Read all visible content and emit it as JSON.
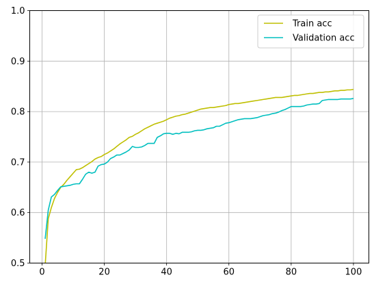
{
  "chart_data": {
    "type": "line",
    "title": "",
    "xlabel": "",
    "ylabel": "",
    "xlim": [
      -3.95,
      104.95
    ],
    "ylim": [
      0.5,
      1.0
    ],
    "xticks": [
      0,
      20,
      40,
      60,
      80,
      100
    ],
    "yticks": [
      0.5,
      0.6,
      0.7,
      0.8,
      0.9,
      1.0
    ],
    "xtick_labels": [
      "0",
      "20",
      "40",
      "60",
      "80",
      "100"
    ],
    "ytick_labels": [
      "0.5",
      "0.6",
      "0.7",
      "0.8",
      "0.9",
      "1.0"
    ],
    "grid": true,
    "legend_position": "top-right",
    "series": [
      {
        "name": "Train acc",
        "color": "#bfbf00",
        "x": [
          1,
          2,
          3,
          4,
          5,
          6,
          7,
          8,
          9,
          10,
          11,
          12,
          13,
          14,
          15,
          16,
          17,
          18,
          19,
          20,
          21,
          22,
          23,
          24,
          25,
          26,
          27,
          28,
          29,
          30,
          31,
          32,
          33,
          34,
          35,
          36,
          37,
          38,
          39,
          40,
          41,
          42,
          43,
          44,
          45,
          46,
          47,
          48,
          49,
          50,
          51,
          52,
          53,
          54,
          55,
          56,
          57,
          58,
          59,
          60,
          61,
          62,
          63,
          64,
          65,
          66,
          67,
          68,
          69,
          70,
          71,
          72,
          73,
          74,
          75,
          76,
          77,
          78,
          79,
          80,
          81,
          82,
          83,
          84,
          85,
          86,
          87,
          88,
          89,
          90,
          91,
          92,
          93,
          94,
          95,
          96,
          97,
          98,
          99,
          100
        ],
        "y": [
          0.495,
          0.588,
          0.61,
          0.628,
          0.64,
          0.65,
          0.656,
          0.664,
          0.671,
          0.678,
          0.685,
          0.686,
          0.689,
          0.693,
          0.697,
          0.701,
          0.706,
          0.709,
          0.711,
          0.715,
          0.718,
          0.722,
          0.726,
          0.731,
          0.736,
          0.74,
          0.744,
          0.749,
          0.751,
          0.755,
          0.758,
          0.762,
          0.766,
          0.769,
          0.772,
          0.775,
          0.777,
          0.779,
          0.781,
          0.784,
          0.787,
          0.789,
          0.791,
          0.792,
          0.794,
          0.795,
          0.797,
          0.799,
          0.801,
          0.803,
          0.805,
          0.806,
          0.807,
          0.808,
          0.808,
          0.809,
          0.81,
          0.811,
          0.812,
          0.814,
          0.815,
          0.816,
          0.816,
          0.817,
          0.818,
          0.819,
          0.82,
          0.821,
          0.822,
          0.823,
          0.824,
          0.825,
          0.826,
          0.827,
          0.828,
          0.828,
          0.828,
          0.829,
          0.83,
          0.831,
          0.832,
          0.832,
          0.833,
          0.834,
          0.835,
          0.836,
          0.836,
          0.837,
          0.838,
          0.838,
          0.839,
          0.839,
          0.84,
          0.841,
          0.841,
          0.842,
          0.842,
          0.843,
          0.843,
          0.844
        ]
      },
      {
        "name": "Validation acc",
        "color": "#00bfbf",
        "x": [
          1,
          2,
          3,
          4,
          5,
          6,
          7,
          8,
          9,
          10,
          11,
          12,
          13,
          14,
          15,
          16,
          17,
          18,
          19,
          20,
          21,
          22,
          23,
          24,
          25,
          26,
          27,
          28,
          29,
          30,
          31,
          32,
          33,
          34,
          35,
          36,
          37,
          38,
          39,
          40,
          41,
          42,
          43,
          44,
          45,
          46,
          47,
          48,
          49,
          50,
          51,
          52,
          53,
          54,
          55,
          56,
          57,
          58,
          59,
          60,
          61,
          62,
          63,
          64,
          65,
          66,
          67,
          68,
          69,
          70,
          71,
          72,
          73,
          74,
          75,
          76,
          77,
          78,
          79,
          80,
          81,
          82,
          83,
          84,
          85,
          86,
          87,
          88,
          89,
          90,
          91,
          92,
          93,
          94,
          95,
          96,
          97,
          98,
          99,
          100
        ],
        "y": [
          0.548,
          0.605,
          0.631,
          0.636,
          0.644,
          0.651,
          0.652,
          0.653,
          0.654,
          0.656,
          0.657,
          0.657,
          0.666,
          0.676,
          0.68,
          0.678,
          0.68,
          0.692,
          0.695,
          0.696,
          0.7,
          0.707,
          0.71,
          0.714,
          0.714,
          0.717,
          0.72,
          0.724,
          0.731,
          0.729,
          0.729,
          0.73,
          0.733,
          0.737,
          0.737,
          0.737,
          0.749,
          0.752,
          0.756,
          0.757,
          0.757,
          0.755,
          0.757,
          0.756,
          0.759,
          0.759,
          0.759,
          0.76,
          0.762,
          0.763,
          0.763,
          0.764,
          0.766,
          0.767,
          0.768,
          0.771,
          0.771,
          0.774,
          0.777,
          0.778,
          0.78,
          0.782,
          0.784,
          0.785,
          0.786,
          0.786,
          0.786,
          0.787,
          0.788,
          0.79,
          0.792,
          0.793,
          0.794,
          0.796,
          0.797,
          0.799,
          0.802,
          0.804,
          0.807,
          0.81,
          0.81,
          0.81,
          0.81,
          0.811,
          0.813,
          0.814,
          0.815,
          0.815,
          0.816,
          0.822,
          0.823,
          0.824,
          0.824,
          0.824,
          0.824,
          0.825,
          0.825,
          0.825,
          0.825,
          0.826
        ]
      }
    ]
  }
}
